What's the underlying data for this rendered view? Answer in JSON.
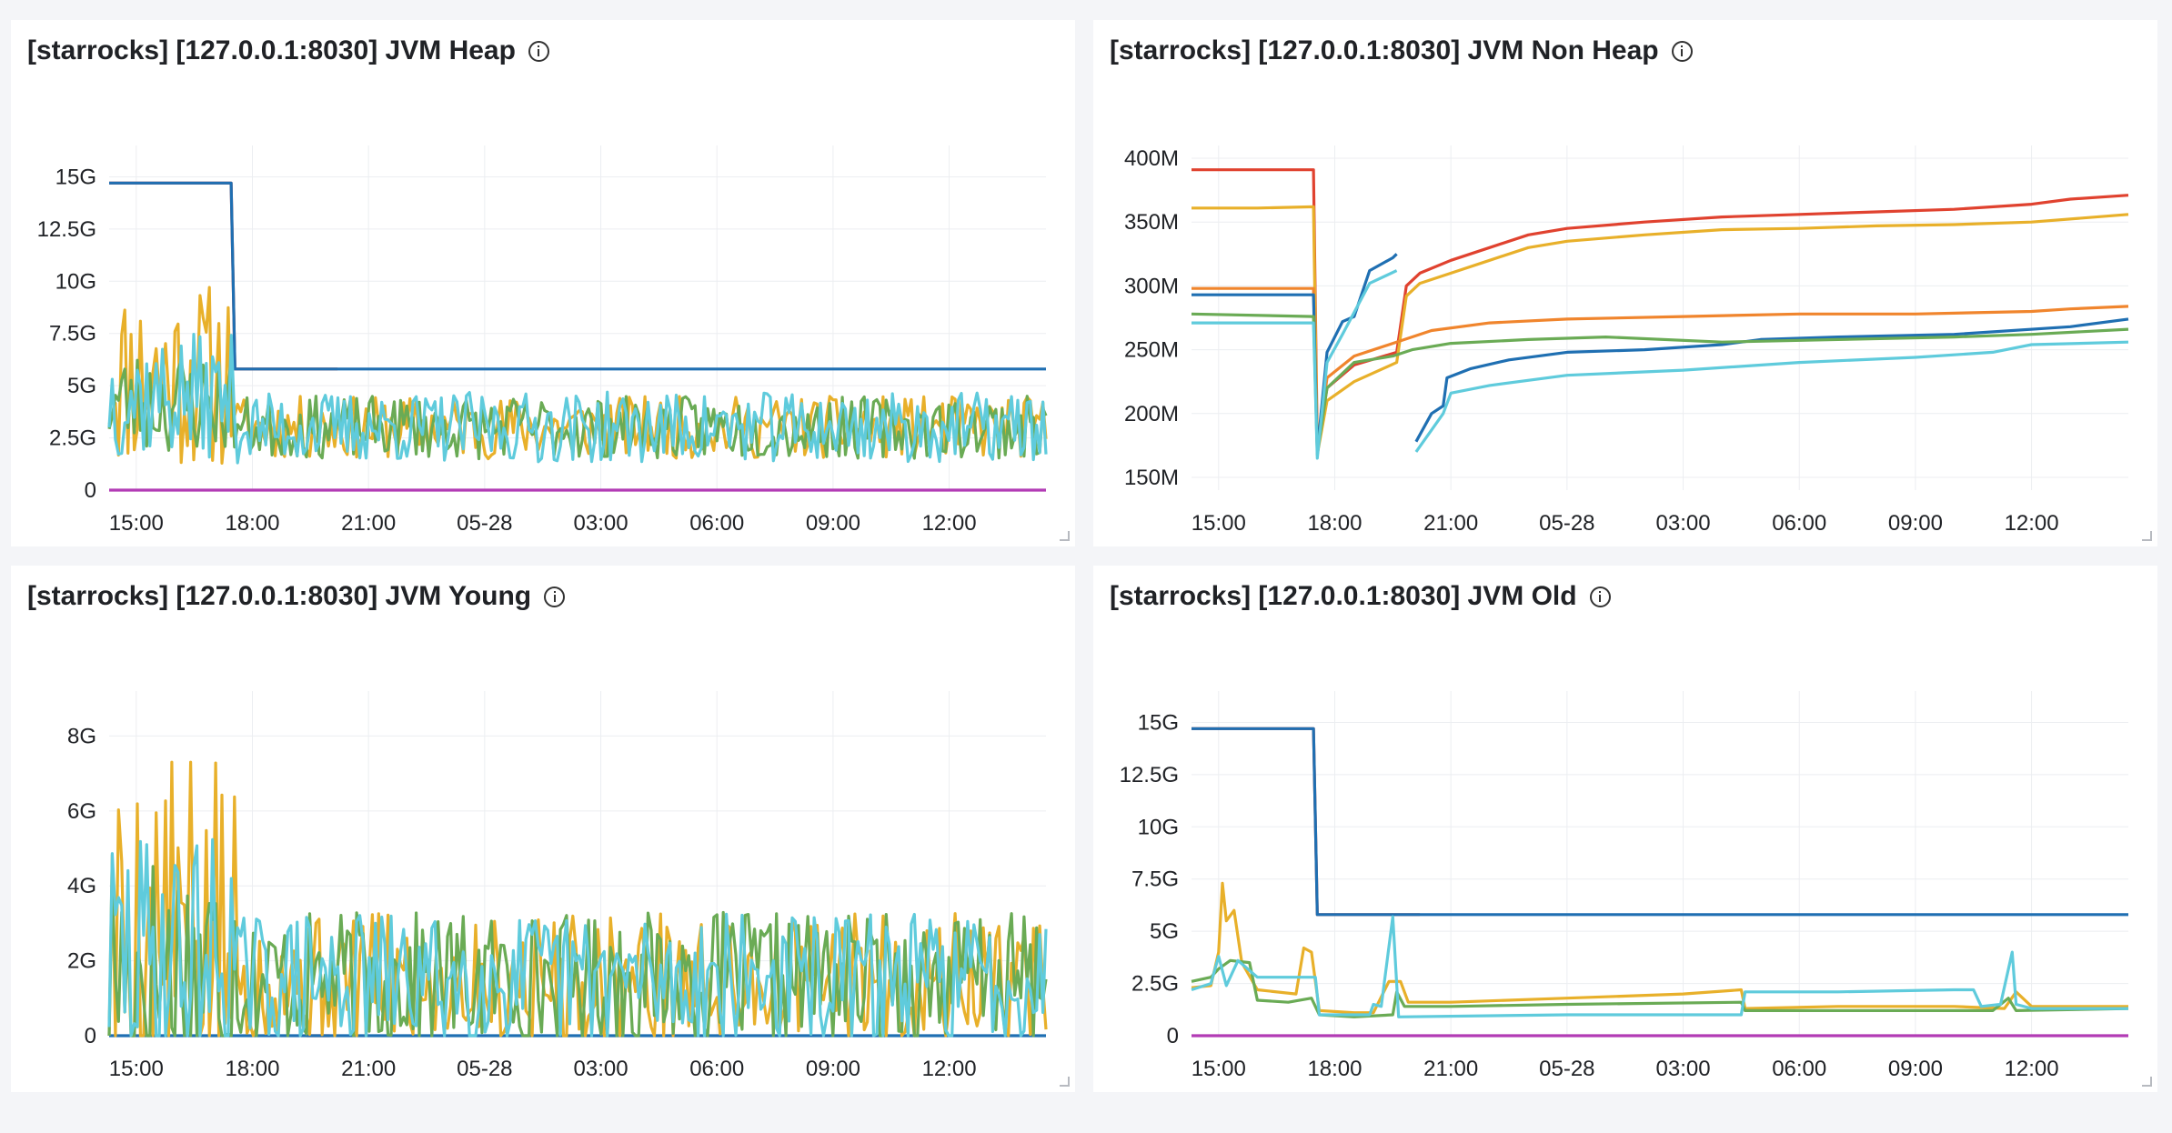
{
  "panels": [
    {
      "title": "[starrocks] [127.0.0.1:8030] JVM Heap"
    },
    {
      "title": "[starrocks] [127.0.0.1:8030] JVM Non Heap"
    },
    {
      "title": "[starrocks] [127.0.0.1:8030] JVM Young"
    },
    {
      "title": "[starrocks] [127.0.0.1:8030] JVM Old"
    }
  ],
  "colors": {
    "blue": "#1f6fb2",
    "red": "#e0422f",
    "yellow": "#e8b02a",
    "green": "#6aab55",
    "cyan": "#5fcbdc",
    "orange": "#f0852d",
    "purple": "#b23bb5"
  },
  "chart_data": [
    {
      "type": "line",
      "title": "[starrocks] [127.0.0.1:8030] JVM Heap",
      "x_ticks": [
        "15:00",
        "18:00",
        "21:00",
        "05-28",
        "03:00",
        "06:00",
        "09:00",
        "12:00"
      ],
      "y_ticks": [
        "0",
        "2.5G",
        "5G",
        "7.5G",
        "10G",
        "12.5G",
        "15G"
      ],
      "ylim": [
        0,
        16.5
      ],
      "grid": true,
      "legend": "none",
      "series": [
        {
          "color": "red",
          "values": [
            [
              14.3,
              14.7
            ],
            [
              17.45,
              14.7
            ],
            [
              17.55,
              5.8
            ],
            [
              20.2,
              5.8
            ]
          ]
        },
        {
          "color": "blue",
          "values": [
            [
              14.3,
              14.7
            ],
            [
              17.45,
              14.7
            ],
            [
              17.55,
              5.8
            ],
            [
              38.5,
              5.8
            ]
          ]
        },
        {
          "color": "purple",
          "values": [
            [
              14.3,
              0
            ],
            [
              38.5,
              0
            ]
          ]
        },
        {
          "color": "yellow",
          "noise": {
            "seed": 11,
            "points": 300,
            "early_base": 5.5,
            "early_amp": 4.5,
            "late_base": 3.0,
            "late_amp": 1.5
          }
        },
        {
          "color": "green",
          "noise": {
            "seed": 23,
            "points": 300,
            "early_base": 4.2,
            "early_amp": 2.5,
            "late_base": 3.0,
            "late_amp": 1.5
          }
        },
        {
          "color": "cyan",
          "noise": {
            "seed": 37,
            "points": 300,
            "early_base": 4.5,
            "early_amp": 3.0,
            "late_base": 3.0,
            "late_amp": 1.7
          }
        }
      ]
    },
    {
      "type": "line",
      "title": "[starrocks] [127.0.0.1:8030] JVM Non Heap",
      "x_ticks": [
        "15:00",
        "18:00",
        "21:00",
        "05-28",
        "03:00",
        "06:00",
        "09:00",
        "12:00"
      ],
      "y_ticks": [
        "150M",
        "200M",
        "250M",
        "300M",
        "350M",
        "400M"
      ],
      "ylim": [
        140,
        410
      ],
      "grid": true,
      "legend": "none",
      "series": [
        {
          "color": "red",
          "values": [
            [
              14.3,
              391
            ],
            [
              17.45,
              391
            ],
            [
              17.55,
              175
            ],
            [
              17.8,
              220
            ],
            [
              18.5,
              238
            ],
            [
              19.6,
              248
            ],
            [
              19.85,
              300
            ],
            [
              20.2,
              310
            ],
            [
              21,
              320
            ],
            [
              22,
              330
            ],
            [
              23,
              340
            ],
            [
              24,
              345
            ],
            [
              26,
              350
            ],
            [
              28,
              354
            ],
            [
              30,
              356
            ],
            [
              32,
              358
            ],
            [
              34,
              360
            ],
            [
              36,
              364
            ],
            [
              37,
              368
            ],
            [
              38.5,
              371
            ]
          ]
        },
        {
          "color": "yellow",
          "values": [
            [
              14.3,
              361
            ],
            [
              16,
              361
            ],
            [
              17.45,
              362
            ],
            [
              17.55,
              168
            ],
            [
              17.8,
              210
            ],
            [
              18.5,
              225
            ],
            [
              19.6,
              240
            ],
            [
              19.85,
              292
            ],
            [
              20.2,
              302
            ],
            [
              21,
              310
            ],
            [
              22,
              320
            ],
            [
              23,
              330
            ],
            [
              24,
              335
            ],
            [
              26,
              340
            ],
            [
              28,
              344
            ],
            [
              30,
              345
            ],
            [
              32,
              347
            ],
            [
              34,
              348
            ],
            [
              36,
              350
            ],
            [
              38.5,
              356
            ]
          ]
        },
        {
          "color": "orange",
          "values": [
            [
              14.3,
              298
            ],
            [
              17.45,
              298
            ],
            [
              17.55,
              172
            ],
            [
              17.8,
              228
            ],
            [
              18.5,
              245
            ],
            [
              19.5,
              255
            ],
            [
              20.5,
              265
            ],
            [
              22,
              271
            ],
            [
              24,
              274
            ],
            [
              27,
              276
            ],
            [
              30,
              278
            ],
            [
              33,
              278
            ],
            [
              36,
              280
            ],
            [
              37,
              282
            ],
            [
              38.5,
              284
            ]
          ]
        },
        {
          "color": "blue",
          "values": [
            [
              14.3,
              293
            ],
            [
              17.45,
              293
            ],
            [
              17.55,
              170
            ],
            [
              17.8,
              248
            ],
            [
              18.2,
              272
            ],
            [
              18.5,
              276
            ],
            [
              18.9,
              312
            ],
            [
              19.5,
              322
            ],
            [
              19.6,
              325
            ],
            [
              null,
              null
            ],
            [
              20.1,
              178
            ],
            [
              20.5,
              200
            ],
            [
              20.8,
              206
            ],
            [
              20.9,
              228
            ],
            [
              21.5,
              235
            ],
            [
              22.5,
              242
            ],
            [
              24,
              248
            ],
            [
              26,
              250
            ],
            [
              28,
              254
            ],
            [
              29,
              258
            ],
            [
              31,
              260
            ],
            [
              34,
              262
            ],
            [
              37,
              268
            ],
            [
              38.5,
              274
            ]
          ]
        },
        {
          "color": "green",
          "values": [
            [
              14.3,
              278
            ],
            [
              17.45,
              276
            ],
            [
              17.55,
              168
            ],
            [
              17.8,
              220
            ],
            [
              18.5,
              240
            ],
            [
              19.5,
              245
            ],
            [
              20,
              250
            ],
            [
              21,
              255
            ],
            [
              23,
              258
            ],
            [
              25,
              260
            ],
            [
              28,
              256
            ],
            [
              31,
              258
            ],
            [
              34,
              260
            ],
            [
              36,
              262
            ],
            [
              38.5,
              266
            ]
          ]
        },
        {
          "color": "cyan",
          "values": [
            [
              14.3,
              271
            ],
            [
              17.45,
              271
            ],
            [
              17.55,
              165
            ],
            [
              17.8,
              240
            ],
            [
              18.2,
              262
            ],
            [
              18.9,
              302
            ],
            [
              19.6,
              312
            ],
            [
              null,
              null
            ],
            [
              20.1,
              170
            ],
            [
              20.8,
              200
            ],
            [
              21,
              216
            ],
            [
              22,
              222
            ],
            [
              24,
              230
            ],
            [
              27,
              234
            ],
            [
              30,
              240
            ],
            [
              33,
              244
            ],
            [
              35,
              248
            ],
            [
              36,
              254
            ],
            [
              38.5,
              256
            ]
          ]
        }
      ]
    },
    {
      "type": "line",
      "title": "[starrocks] [127.0.0.1:8030] JVM Young",
      "x_ticks": [
        "15:00",
        "18:00",
        "21:00",
        "05-28",
        "03:00",
        "06:00",
        "09:00",
        "12:00"
      ],
      "y_ticks": [
        "0",
        "2G",
        "4G",
        "6G",
        "8G"
      ],
      "ylim": [
        0,
        9.2
      ],
      "grid": true,
      "legend": "none",
      "series": [
        {
          "color": "red",
          "values": [
            [
              19.4,
              0
            ],
            [
              20.0,
              0
            ]
          ]
        },
        {
          "color": "blue",
          "values": [
            [
              14.3,
              0
            ],
            [
              38.5,
              0
            ]
          ]
        },
        {
          "color": "yellow",
          "noise": {
            "seed": 5,
            "points": 300,
            "early_base": 2.5,
            "early_amp": 5.0,
            "late_base": 1.5,
            "late_amp": 1.8
          }
        },
        {
          "color": "green",
          "noise": {
            "seed": 17,
            "points": 300,
            "early_base": 1.8,
            "early_amp": 3.5,
            "late_base": 1.5,
            "late_amp": 1.8
          }
        },
        {
          "color": "cyan",
          "noise": {
            "seed": 29,
            "points": 300,
            "early_base": 2.0,
            "early_amp": 3.5,
            "late_base": 1.5,
            "late_amp": 1.8
          }
        }
      ]
    },
    {
      "type": "line",
      "title": "[starrocks] [127.0.0.1:8030] JVM Old",
      "x_ticks": [
        "15:00",
        "18:00",
        "21:00",
        "05-28",
        "03:00",
        "06:00",
        "09:00",
        "12:00"
      ],
      "y_ticks": [
        "0",
        "2.5G",
        "5G",
        "7.5G",
        "10G",
        "12.5G",
        "15G"
      ],
      "ylim": [
        0,
        16.5
      ],
      "grid": true,
      "legend": "none",
      "series": [
        {
          "color": "red",
          "values": [
            [
              14.3,
              14.7
            ],
            [
              17.45,
              14.7
            ],
            [
              17.55,
              5.8
            ],
            [
              20.2,
              5.8
            ]
          ]
        },
        {
          "color": "blue",
          "values": [
            [
              14.3,
              14.7
            ],
            [
              17.45,
              14.7
            ],
            [
              17.55,
              5.8
            ],
            [
              38.5,
              5.8
            ]
          ]
        },
        {
          "color": "purple",
          "values": [
            [
              14.3,
              0
            ],
            [
              38.5,
              0
            ]
          ]
        },
        {
          "color": "yellow",
          "values": [
            [
              14.3,
              2.3
            ],
            [
              14.8,
              2.4
            ],
            [
              15.0,
              4.0
            ],
            [
              15.1,
              7.3
            ],
            [
              15.2,
              5.5
            ],
            [
              15.4,
              6.0
            ],
            [
              15.6,
              3.5
            ],
            [
              16.0,
              2.2
            ],
            [
              17.0,
              2.0
            ],
            [
              17.2,
              4.2
            ],
            [
              17.4,
              4.0
            ],
            [
              17.6,
              1.2
            ],
            [
              18.5,
              1.1
            ],
            [
              19.0,
              1.1
            ],
            [
              19.4,
              2.6
            ],
            [
              19.7,
              2.6
            ],
            [
              19.9,
              1.6
            ],
            [
              21,
              1.6
            ],
            [
              24,
              1.8
            ],
            [
              27,
              2.0
            ],
            [
              28.5,
              2.2
            ],
            [
              28.6,
              1.3
            ],
            [
              31,
              1.4
            ],
            [
              34,
              1.4
            ],
            [
              35.3,
              1.3
            ],
            [
              35.6,
              2.1
            ],
            [
              36,
              1.4
            ],
            [
              37,
              1.4
            ],
            [
              38.5,
              1.4
            ]
          ]
        },
        {
          "color": "green",
          "values": [
            [
              14.3,
              2.6
            ],
            [
              14.8,
              2.8
            ],
            [
              15.0,
              3.2
            ],
            [
              15.3,
              3.6
            ],
            [
              15.8,
              3.5
            ],
            [
              16.0,
              1.7
            ],
            [
              16.8,
              1.6
            ],
            [
              17.4,
              1.8
            ],
            [
              17.6,
              1.0
            ],
            [
              18.5,
              0.9
            ],
            [
              19.5,
              1.0
            ],
            [
              19.6,
              2.1
            ],
            [
              19.8,
              1.4
            ],
            [
              21,
              1.4
            ],
            [
              24,
              1.5
            ],
            [
              28.5,
              1.6
            ],
            [
              28.6,
              1.2
            ],
            [
              31,
              1.2
            ],
            [
              35,
              1.2
            ],
            [
              35.4,
              1.8
            ],
            [
              35.6,
              1.2
            ],
            [
              38.5,
              1.3
            ]
          ]
        },
        {
          "color": "cyan",
          "values": [
            [
              14.3,
              2.2
            ],
            [
              14.8,
              2.5
            ],
            [
              15.0,
              3.8
            ],
            [
              15.2,
              2.4
            ],
            [
              15.5,
              3.6
            ],
            [
              16.0,
              2.8
            ],
            [
              17.0,
              2.8
            ],
            [
              17.5,
              2.8
            ],
            [
              17.6,
              1.0
            ],
            [
              18.5,
              1.0
            ],
            [
              18.9,
              1.0
            ],
            [
              19.0,
              1.5
            ],
            [
              19.2,
              1.4
            ],
            [
              19.5,
              5.7
            ],
            [
              19.65,
              0.9
            ],
            [
              24,
              1.0
            ],
            [
              28.5,
              1.0
            ],
            [
              28.6,
              2.1
            ],
            [
              31,
              2.1
            ],
            [
              34,
              2.2
            ],
            [
              34.5,
              2.2
            ],
            [
              34.7,
              1.4
            ],
            [
              35.2,
              1.5
            ],
            [
              35.5,
              4.0
            ],
            [
              35.6,
              1.5
            ],
            [
              36,
              1.3
            ],
            [
              38.5,
              1.3
            ]
          ]
        }
      ]
    }
  ]
}
